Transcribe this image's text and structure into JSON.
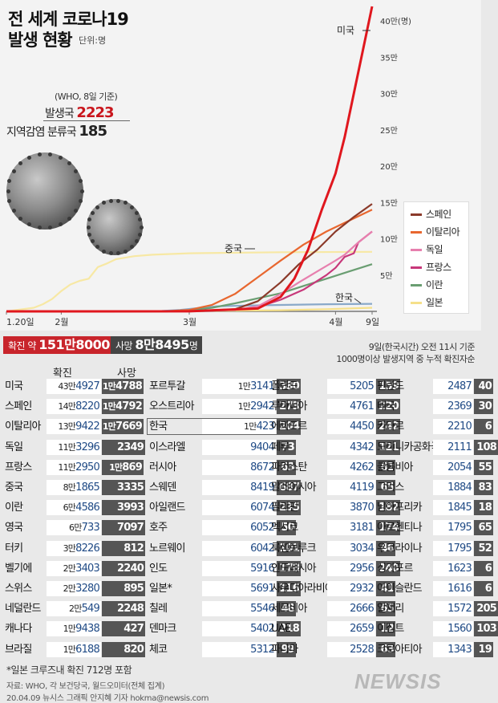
{
  "header": {
    "title_line1": "전 세계 코로나19",
    "title_line2": "발생 현황",
    "unit": "단위:명",
    "who_note": "(WHO, 8일 기준)",
    "countries_label": "발생국",
    "countries_value": "2223",
    "regional_label": "지역감염 분류국",
    "regional_value": "185"
  },
  "colors": {
    "usa": "#e0171e",
    "spain": "#8b3a2a",
    "italy": "#e8672f",
    "germany": "#e77fae",
    "france": "#c7387a",
    "iran": "#6a9e72",
    "japan": "#f5e08a",
    "china": "#f7e8a4",
    "korea": "#8aa9c9"
  },
  "chart_data": {
    "type": "line",
    "title": "전 세계 코로나19 발생 현황",
    "ylabel": "단위:명",
    "y_ticks": [
      "5만",
      "10만",
      "15만",
      "20만",
      "25만",
      "30만",
      "35만",
      "40만(명)"
    ],
    "ylim": [
      0,
      420000
    ],
    "x_ticks": [
      "1.20일",
      "2월",
      "3월",
      "4월",
      "9일"
    ],
    "x_days": [
      0,
      12,
      40,
      72,
      80
    ],
    "series": [
      {
        "name": "미국",
        "key": "usa",
        "x": [
          0,
          40,
          55,
          60,
          63,
          66,
          69,
          72,
          74,
          76,
          78,
          80
        ],
        "values": [
          0,
          100,
          4000,
          20000,
          45000,
          85000,
          140000,
          190000,
          240000,
          300000,
          360000,
          420000
        ]
      },
      {
        "name": "스페인",
        "key": "spain",
        "x": [
          0,
          40,
          50,
          55,
          60,
          64,
          68,
          72,
          76,
          80
        ],
        "values": [
          0,
          100,
          3000,
          14000,
          40000,
          65000,
          85000,
          110000,
          130000,
          148000
        ]
      },
      {
        "name": "이탈리아",
        "key": "italy",
        "x": [
          0,
          35,
          40,
          45,
          50,
          55,
          60,
          65,
          70,
          75,
          80
        ],
        "values": [
          0,
          300,
          2000,
          9000,
          24000,
          47000,
          70000,
          92000,
          110000,
          125000,
          140000
        ]
      },
      {
        "name": "독일",
        "key": "germany",
        "x": [
          0,
          40,
          50,
          55,
          60,
          64,
          68,
          72,
          74,
          77,
          80
        ],
        "values": [
          0,
          100,
          2000,
          7000,
          24000,
          40000,
          55000,
          70000,
          78000,
          95000,
          110000
        ]
      },
      {
        "name": "프랑스",
        "key": "france",
        "x": [
          0,
          40,
          50,
          55,
          60,
          65,
          70,
          72,
          74,
          76,
          77,
          80
        ],
        "values": [
          0,
          100,
          2000,
          6000,
          16000,
          30000,
          50000,
          60000,
          75000,
          80000,
          95000,
          110000
        ]
      },
      {
        "name": "이란",
        "key": "iran",
        "x": [
          0,
          35,
          40,
          45,
          50,
          55,
          60,
          65,
          70,
          75,
          80
        ],
        "values": [
          0,
          50,
          1500,
          5000,
          11000,
          18000,
          25000,
          35000,
          45000,
          55000,
          65000
        ]
      },
      {
        "name": "일본",
        "key": "japan",
        "x": [
          0,
          20,
          40,
          60,
          70,
          80
        ],
        "values": [
          0,
          100,
          500,
          1500,
          3000,
          5000
        ]
      },
      {
        "name": "중국",
        "key": "china",
        "x": [
          0,
          6,
          8,
          10,
          12,
          14,
          16,
          18,
          20,
          22,
          24,
          28,
          32,
          40,
          60,
          80
        ],
        "values": [
          0,
          5000,
          10000,
          17000,
          28000,
          37000,
          42000,
          45000,
          61000,
          66000,
          72000,
          76000,
          78000,
          80000,
          81500,
          82000
        ]
      },
      {
        "name": "한국",
        "key": "korea",
        "x": [
          0,
          30,
          34,
          38,
          42,
          46,
          52,
          60,
          70,
          80
        ],
        "values": [
          0,
          30,
          500,
          2000,
          4500,
          7000,
          8000,
          8800,
          9800,
          10400
        ]
      }
    ],
    "legend": "right",
    "annotations": [
      {
        "text": "미국",
        "series": "usa"
      },
      {
        "text": "중국",
        "series": "china"
      },
      {
        "text": "한국",
        "series": "korea"
      }
    ]
  },
  "totals": {
    "confirmed_label": "확진 약",
    "confirmed_value": "151만8000",
    "deaths_label": "사망",
    "deaths_value": "8만8495",
    "deaths_unit": "명",
    "asof_line1": "9일(한국시간) 오전 11시 기준",
    "asof_line2": "1000명이상 발생지역 중 누적 확진자순"
  },
  "col_heads": {
    "confirmed": "확진",
    "deaths": "사망"
  },
  "columns": [
    [
      {
        "name": "미국",
        "c_man": "43만",
        "c_rest": "4927",
        "d_man": "1만",
        "d_rest": "4788"
      },
      {
        "name": "스페인",
        "c_man": "14만",
        "c_rest": "8220",
        "d_man": "1만",
        "d_rest": "4792"
      },
      {
        "name": "이탈리아",
        "c_man": "13만",
        "c_rest": "9422",
        "d_man": "1만",
        "d_rest": "7669"
      },
      {
        "name": "독일",
        "c_man": "11만",
        "c_rest": "3296",
        "d_man": "",
        "d_rest": "2349"
      },
      {
        "name": "프랑스",
        "c_man": "11만",
        "c_rest": "2950",
        "d_man": "1만",
        "d_rest": "869"
      },
      {
        "name": "중국",
        "c_man": "8만",
        "c_rest": "1865",
        "d_man": "",
        "d_rest": "3335"
      },
      {
        "name": "이란",
        "c_man": "6만",
        "c_rest": "4586",
        "d_man": "",
        "d_rest": "3993"
      },
      {
        "name": "영국",
        "c_man": "6만",
        "c_rest": "733",
        "d_man": "",
        "d_rest": "7097"
      },
      {
        "name": "터키",
        "c_man": "3만",
        "c_rest": "8226",
        "d_man": "",
        "d_rest": "812"
      },
      {
        "name": "벨기에",
        "c_man": "2만",
        "c_rest": "3403",
        "d_man": "",
        "d_rest": "2240"
      },
      {
        "name": "스위스",
        "c_man": "2만",
        "c_rest": "3280",
        "d_man": "",
        "d_rest": "895"
      },
      {
        "name": "네덜란드",
        "c_man": "2만",
        "c_rest": "549",
        "d_man": "",
        "d_rest": "2248"
      },
      {
        "name": "캐나다",
        "c_man": "1만",
        "c_rest": "9438",
        "d_man": "",
        "d_rest": "427"
      },
      {
        "name": "브라질",
        "c_man": "1만",
        "c_rest": "6188",
        "d_man": "",
        "d_rest": "820"
      }
    ],
    [
      {
        "name": "포르투갈",
        "c_man": "1만",
        "c_rest": "3141",
        "d_man": "",
        "d_rest": "380"
      },
      {
        "name": "오스트리아",
        "c_man": "1만",
        "c_rest": "2942",
        "d_man": "",
        "d_rest": "273"
      },
      {
        "name": "한국",
        "c_man": "1만",
        "c_rest": "423",
        "d_man": "",
        "d_rest": "204",
        "highlight": true
      },
      {
        "name": "이스라엘",
        "c_man": "",
        "c_rest": "9404",
        "d_man": "",
        "d_rest": "73"
      },
      {
        "name": "러시아",
        "c_man": "",
        "c_rest": "8672",
        "d_man": "",
        "d_rest": "63"
      },
      {
        "name": "스웨덴",
        "c_man": "",
        "c_rest": "8419",
        "d_man": "",
        "d_rest": "687"
      },
      {
        "name": "아일랜드",
        "c_man": "",
        "c_rest": "6074",
        "d_man": "",
        "d_rest": "235"
      },
      {
        "name": "호주",
        "c_man": "",
        "c_rest": "6052",
        "d_man": "",
        "d_rest": "50"
      },
      {
        "name": "노르웨이",
        "c_man": "",
        "c_rest": "6042",
        "d_man": "",
        "d_rest": "101"
      },
      {
        "name": "인도",
        "c_man": "",
        "c_rest": "5916",
        "d_man": "",
        "d_rest": "178"
      },
      {
        "name": "일본*",
        "c_man": "",
        "c_rest": "5691",
        "d_man": "",
        "d_rest": "116"
      },
      {
        "name": "칠레",
        "c_man": "",
        "c_rest": "5546",
        "d_man": "",
        "d_rest": "48"
      },
      {
        "name": "덴마크",
        "c_man": "",
        "c_rest": "5402",
        "d_man": "",
        "d_rest": "218"
      },
      {
        "name": "체코",
        "c_man": "",
        "c_rest": "5312",
        "d_man": "",
        "d_rest": "99"
      }
    ],
    [
      {
        "name": "폴란드",
        "c_man": "",
        "c_rest": "5205",
        "d_man": "",
        "d_rest": "159"
      },
      {
        "name": "루마니아",
        "c_man": "",
        "c_rest": "4761",
        "d_man": "",
        "d_rest": "220"
      },
      {
        "name": "에콰도르",
        "c_man": "",
        "c_rest": "4450",
        "d_man": "",
        "d_rest": "242"
      },
      {
        "name": "페루",
        "c_man": "",
        "c_rest": "4342",
        "d_man": "",
        "d_rest": "121"
      },
      {
        "name": "파키스탄",
        "c_man": "",
        "c_rest": "4262",
        "d_man": "",
        "d_rest": "61"
      },
      {
        "name": "말레이시아",
        "c_man": "",
        "c_rest": "4119",
        "d_man": "",
        "d_rest": "65"
      },
      {
        "name": "필리핀",
        "c_man": "",
        "c_rest": "3870",
        "d_man": "",
        "d_rest": "182"
      },
      {
        "name": "멕시코",
        "c_man": "",
        "c_rest": "3181",
        "d_man": "",
        "d_rest": "174"
      },
      {
        "name": "룩셈브루크",
        "c_man": "",
        "c_rest": "3034",
        "d_man": "",
        "d_rest": "46"
      },
      {
        "name": "인도네시아",
        "c_man": "",
        "c_rest": "2956",
        "d_man": "",
        "d_rest": "240"
      },
      {
        "name": "사우디아라비아",
        "c_man": "",
        "c_rest": "2932",
        "d_man": "",
        "d_rest": "41"
      },
      {
        "name": "세르비아",
        "c_man": "",
        "c_rest": "2666",
        "d_man": "",
        "d_rest": "65"
      },
      {
        "name": "UAE",
        "c_man": "",
        "c_rest": "2659",
        "d_man": "",
        "d_rest": "12"
      },
      {
        "name": "파나마",
        "c_man": "",
        "c_rest": "2528",
        "d_man": "",
        "d_rest": "63"
      }
    ],
    [
      {
        "name": "핀란드",
        "c_man": "",
        "c_rest": "2487",
        "d_man": "",
        "d_rest": "40"
      },
      {
        "name": "태국",
        "c_man": "",
        "c_rest": "2369",
        "d_man": "",
        "d_rest": "30"
      },
      {
        "name": "카타르",
        "c_man": "",
        "c_rest": "2210",
        "d_man": "",
        "d_rest": "6"
      },
      {
        "name": "도미니카공화국",
        "c_man": "",
        "c_rest": "2111",
        "d_man": "",
        "d_rest": "108"
      },
      {
        "name": "콜롬비아",
        "c_man": "",
        "c_rest": "2054",
        "d_man": "",
        "d_rest": "55"
      },
      {
        "name": "그리스",
        "c_man": "",
        "c_rest": "1884",
        "d_man": "",
        "d_rest": "83"
      },
      {
        "name": "남아프리카",
        "c_man": "",
        "c_rest": "1845",
        "d_man": "",
        "d_rest": "18"
      },
      {
        "name": "아르헨티나",
        "c_man": "",
        "c_rest": "1795",
        "d_man": "",
        "d_rest": "65"
      },
      {
        "name": "우크라이나",
        "c_man": "",
        "c_rest": "1795",
        "d_man": "",
        "d_rest": "52"
      },
      {
        "name": "싱가포르",
        "c_man": "",
        "c_rest": "1623",
        "d_man": "",
        "d_rest": "6"
      },
      {
        "name": "아이슬란드",
        "c_man": "",
        "c_rest": "1616",
        "d_man": "",
        "d_rest": "6"
      },
      {
        "name": "알제리",
        "c_man": "",
        "c_rest": "1572",
        "d_man": "",
        "d_rest": "205"
      },
      {
        "name": "이집트",
        "c_man": "",
        "c_rest": "1560",
        "d_man": "",
        "d_rest": "103"
      },
      {
        "name": "크로아티아",
        "c_man": "",
        "c_rest": "1343",
        "d_man": "",
        "d_rest": "19"
      }
    ]
  ],
  "footer": {
    "footnote": "*일본 크루즈내 확진 712명 포함",
    "source": "자료: WHO, 각 보건당국, 월드오미터(전체 집계)",
    "credit": "20.04.09 뉴시스 그래픽 안지혜 기자 hokma@newsis.com",
    "logo": "NEWSIS"
  }
}
